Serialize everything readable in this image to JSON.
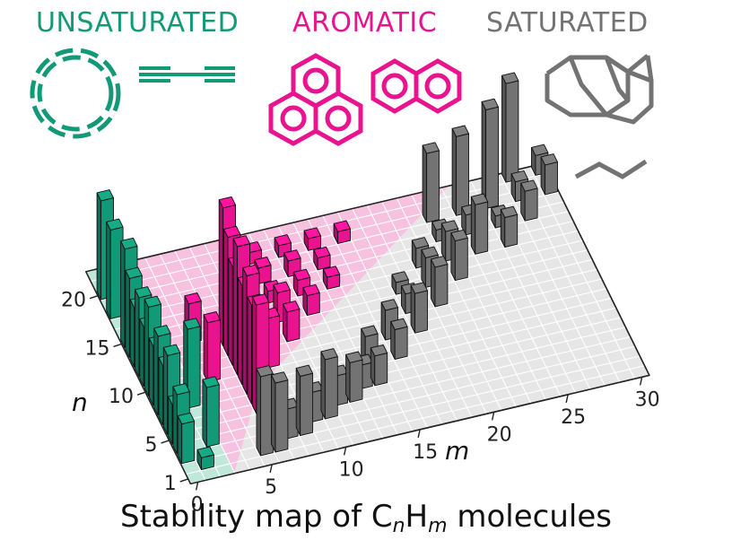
{
  "categories": {
    "unsaturated": {
      "label": "UNSATURATED",
      "color": "#129977"
    },
    "aromatic": {
      "label": "AROMATIC",
      "color": "#ea138f"
    },
    "saturated": {
      "label": "SATURATED",
      "color": "#737373"
    }
  },
  "caption": {
    "prefix": "Stability map of C",
    "sub_n": "n",
    "mid": "H",
    "sub_m": "m",
    "suffix": " molecules"
  },
  "axes": {
    "m": {
      "label": "m",
      "ticks": [
        "0",
        "5",
        "10",
        "15",
        "20",
        "25",
        "30"
      ],
      "range": [
        0,
        30
      ]
    },
    "n": {
      "label": "n",
      "ticks": [
        "1",
        "5",
        "10",
        "15",
        "20"
      ],
      "range": [
        1,
        22
      ]
    }
  },
  "icons": [
    "cyclic-polyyne-ring-icon",
    "linear-polyyne-chain-icon",
    "phenalene-icon",
    "naphthalene-icon",
    "adamantane-cage-icon",
    "alkane-zigzag-icon"
  ],
  "chart_data": {
    "type": "bar3d",
    "title": "Stability map of CnHm molecules",
    "xlabel": "m",
    "ylabel": "n",
    "xlim": [
      0,
      30
    ],
    "ylim": [
      1,
      22
    ],
    "regions": [
      {
        "name": "UNSATURATED",
        "color": "#129977"
      },
      {
        "name": "AROMATIC",
        "color": "#ea138f"
      },
      {
        "name": "SATURATED",
        "color": "#737373"
      }
    ],
    "points": [
      {
        "m": 0,
        "n": 20,
        "h": 5,
        "region": "UNSATURATED"
      },
      {
        "m": 0,
        "n": 18,
        "h": 4.5,
        "region": "UNSATURATED"
      },
      {
        "m": 0,
        "n": 15,
        "h": 5,
        "region": "UNSATURATED"
      },
      {
        "m": 0,
        "n": 14,
        "h": 4,
        "region": "UNSATURATED"
      },
      {
        "m": 0,
        "n": 13,
        "h": 3,
        "region": "UNSATURATED"
      },
      {
        "m": 0,
        "n": 12,
        "h": 4,
        "region": "UNSATURATED"
      },
      {
        "m": 0,
        "n": 11,
        "h": 3,
        "region": "UNSATURATED"
      },
      {
        "m": 0,
        "n": 10,
        "h": 4.5,
        "region": "UNSATURATED"
      },
      {
        "m": 0,
        "n": 9,
        "h": 3,
        "region": "UNSATURATED"
      },
      {
        "m": 0,
        "n": 8,
        "h": 4,
        "region": "UNSATURATED"
      },
      {
        "m": 0,
        "n": 7,
        "h": 3,
        "region": "UNSATURATED"
      },
      {
        "m": 0,
        "n": 6,
        "h": 4,
        "region": "UNSATURATED"
      },
      {
        "m": 0,
        "n": 5,
        "h": 2,
        "region": "UNSATURATED"
      },
      {
        "m": 0,
        "n": 4,
        "h": 3,
        "region": "UNSATURATED"
      },
      {
        "m": 0,
        "n": 3,
        "h": 2,
        "region": "UNSATURATED"
      },
      {
        "m": 1,
        "n": 2,
        "h": 0.6,
        "region": "UNSATURATED"
      },
      {
        "m": 2,
        "n": 8,
        "h": 4,
        "region": "UNSATURATED"
      },
      {
        "m": 2,
        "n": 4,
        "h": 3,
        "region": "UNSATURATED"
      },
      {
        "m": 4,
        "n": 14,
        "h": 2,
        "region": "AROMATIC"
      },
      {
        "m": 4,
        "n": 10,
        "h": 3,
        "region": "AROMATIC"
      },
      {
        "m": 6,
        "n": 13,
        "h": 7,
        "region": "AROMATIC"
      },
      {
        "m": 6,
        "n": 12,
        "h": 6,
        "region": "AROMATIC"
      },
      {
        "m": 6,
        "n": 11,
        "h": 5,
        "region": "AROMATIC"
      },
      {
        "m": 6,
        "n": 10,
        "h": 6.5,
        "region": "AROMATIC"
      },
      {
        "m": 6,
        "n": 9,
        "h": 5,
        "region": "AROMATIC"
      },
      {
        "m": 6,
        "n": 8,
        "h": 6,
        "region": "AROMATIC"
      },
      {
        "m": 6,
        "n": 7,
        "h": 5,
        "region": "AROMATIC"
      },
      {
        "m": 6,
        "n": 6,
        "h": 5.5,
        "region": "AROMATIC"
      },
      {
        "m": 8,
        "n": 18,
        "h": 0.6,
        "region": "AROMATIC"
      },
      {
        "m": 8,
        "n": 16,
        "h": 0.6,
        "region": "AROMATIC"
      },
      {
        "m": 8,
        "n": 14,
        "h": 1.2,
        "region": "AROMATIC"
      },
      {
        "m": 8,
        "n": 12,
        "h": 1,
        "region": "AROMATIC"
      },
      {
        "m": 8,
        "n": 10,
        "h": 2.5,
        "region": "AROMATIC"
      },
      {
        "m": 10,
        "n": 20,
        "h": 0.6,
        "region": "AROMATIC"
      },
      {
        "m": 10,
        "n": 18,
        "h": 0.8,
        "region": "AROMATIC"
      },
      {
        "m": 10,
        "n": 16,
        "h": 0.6,
        "region": "AROMATIC"
      },
      {
        "m": 10,
        "n": 14,
        "h": 1.5,
        "region": "AROMATIC"
      },
      {
        "m": 10,
        "n": 12,
        "h": 1.5,
        "region": "AROMATIC"
      },
      {
        "m": 12,
        "n": 20,
        "h": 0.6,
        "region": "AROMATIC"
      },
      {
        "m": 12,
        "n": 18,
        "h": 0.8,
        "region": "AROMATIC"
      },
      {
        "m": 12,
        "n": 16,
        "h": 0.8,
        "region": "AROMATIC"
      },
      {
        "m": 12,
        "n": 14,
        "h": 1,
        "region": "AROMATIC"
      },
      {
        "m": 14,
        "n": 20,
        "h": 0.6,
        "region": "AROMATIC"
      },
      {
        "m": 14,
        "n": 18,
        "h": 0.6,
        "region": "AROMATIC"
      },
      {
        "m": 14,
        "n": 16,
        "h": 0.6,
        "region": "AROMATIC"
      },
      {
        "m": 16,
        "n": 20,
        "h": 0.6,
        "region": "AROMATIC"
      },
      {
        "m": 5,
        "n": 2,
        "h": 4,
        "region": "SATURATED"
      },
      {
        "m": 6,
        "n": 2,
        "h": 3.5,
        "region": "SATURATED"
      },
      {
        "m": 7,
        "n": 3,
        "h": 1.5,
        "region": "SATURATED"
      },
      {
        "m": 8,
        "n": 3,
        "h": 3,
        "region": "SATURATED"
      },
      {
        "m": 9,
        "n": 4,
        "h": 1.5,
        "region": "SATURATED"
      },
      {
        "m": 10,
        "n": 4,
        "h": 3,
        "region": "SATURATED"
      },
      {
        "m": 11,
        "n": 5,
        "h": 1.5,
        "region": "SATURATED"
      },
      {
        "m": 12,
        "n": 5,
        "h": 2,
        "region": "SATURATED"
      },
      {
        "m": 13,
        "n": 6,
        "h": 1.2,
        "region": "SATURATED"
      },
      {
        "m": 14,
        "n": 6,
        "h": 1.5,
        "region": "SATURATED"
      },
      {
        "m": 14,
        "n": 8,
        "h": 1.5,
        "region": "SATURATED"
      },
      {
        "m": 16,
        "n": 8,
        "h": 1.5,
        "region": "SATURATED"
      },
      {
        "m": 16,
        "n": 10,
        "h": 1.5,
        "region": "SATURATED"
      },
      {
        "m": 18,
        "n": 10,
        "h": 2,
        "region": "SATURATED"
      },
      {
        "m": 18,
        "n": 12,
        "h": 1,
        "region": "SATURATED"
      },
      {
        "m": 18,
        "n": 14,
        "h": 0.6,
        "region": "SATURATED"
      },
      {
        "m": 20,
        "n": 12,
        "h": 2,
        "region": "SATURATED"
      },
      {
        "m": 20,
        "n": 14,
        "h": 1.5,
        "region": "SATURATED"
      },
      {
        "m": 20,
        "n": 16,
        "h": 1,
        "region": "SATURATED"
      },
      {
        "m": 22,
        "n": 14,
        "h": 2,
        "region": "SATURATED"
      },
      {
        "m": 22,
        "n": 16,
        "h": 1.5,
        "region": "SATURATED"
      },
      {
        "m": 22,
        "n": 18,
        "h": 0.6,
        "region": "SATURATED"
      },
      {
        "m": 22,
        "n": 20,
        "h": 3.5,
        "region": "SATURATED"
      },
      {
        "m": 24,
        "n": 16,
        "h": 2.5,
        "region": "SATURATED"
      },
      {
        "m": 24,
        "n": 18,
        "h": 1,
        "region": "SATURATED"
      },
      {
        "m": 24,
        "n": 20,
        "h": 4,
        "region": "SATURATED"
      },
      {
        "m": 26,
        "n": 16,
        "h": 1.5,
        "region": "SATURATED"
      },
      {
        "m": 26,
        "n": 18,
        "h": 0.6,
        "region": "SATURATED"
      },
      {
        "m": 26,
        "n": 20,
        "h": 5,
        "region": "SATURATED"
      },
      {
        "m": 28,
        "n": 18,
        "h": 1.5,
        "region": "SATURATED"
      },
      {
        "m": 28,
        "n": 20,
        "h": 1,
        "region": "SATURATED"
      },
      {
        "m": 28,
        "n": 22,
        "h": 5,
        "region": "SATURATED"
      },
      {
        "m": 30,
        "n": 20,
        "h": 1.5,
        "region": "SATURATED"
      },
      {
        "m": 30,
        "n": 22,
        "h": 1,
        "region": "SATURATED"
      }
    ]
  }
}
